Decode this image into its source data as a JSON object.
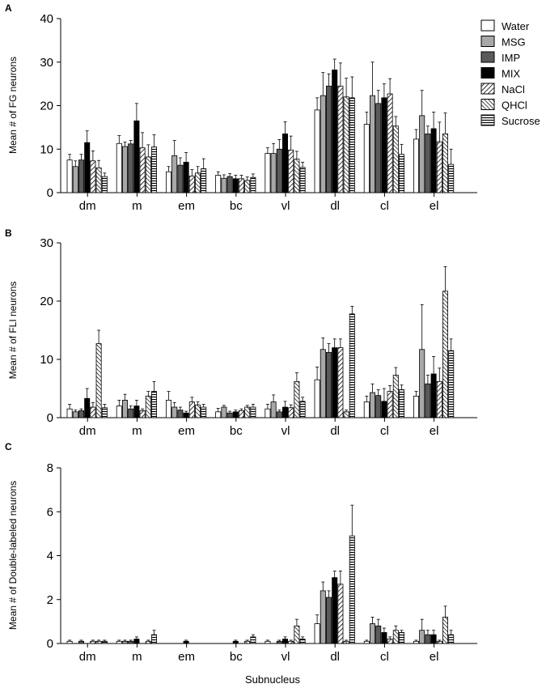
{
  "chart_data": [
    {
      "type": "bar",
      "panel": "A",
      "ylabel": "Mean # of FG neurons",
      "xlabel": "",
      "ylim": [
        0,
        40
      ],
      "yticks": [
        0,
        10,
        20,
        30,
        40
      ],
      "categories": [
        "dm",
        "m",
        "em",
        "bc",
        "vl",
        "dl",
        "cl",
        "el"
      ],
      "legend": "top-right",
      "series": [
        {
          "name": "Water",
          "values": [
            7.5,
            11.3,
            4.8,
            4.0,
            9.0,
            19.0,
            15.7,
            12.3
          ],
          "errors": [
            1.3,
            1.8,
            1.2,
            0.8,
            1.3,
            2.8,
            2.8,
            2.2
          ]
        },
        {
          "name": "MSG",
          "values": [
            6.0,
            10.6,
            8.5,
            3.3,
            9.0,
            22.3,
            22.3,
            17.7
          ],
          "errors": [
            1.3,
            1.0,
            3.5,
            0.8,
            2.3,
            5.3,
            7.7,
            5.8
          ]
        },
        {
          "name": "IMP",
          "values": [
            7.5,
            11.2,
            6.3,
            3.7,
            10.0,
            24.5,
            20.5,
            13.5
          ],
          "errors": [
            1.3,
            0.8,
            1.7,
            0.7,
            2.2,
            2.8,
            3.0,
            1.8
          ]
        },
        {
          "name": "MIX",
          "values": [
            11.5,
            16.5,
            7.0,
            3.2,
            13.5,
            28.2,
            21.8,
            14.7
          ],
          "errors": [
            2.7,
            4.0,
            2.2,
            0.8,
            2.8,
            2.5,
            3.2,
            3.8
          ]
        },
        {
          "name": "NaCl",
          "values": [
            7.3,
            10.3,
            3.8,
            3.2,
            9.8,
            24.5,
            22.7,
            11.7
          ],
          "errors": [
            2.3,
            3.5,
            1.5,
            0.8,
            3.2,
            5.3,
            3.5,
            4.5
          ]
        },
        {
          "name": "QHCl",
          "values": [
            5.7,
            8.2,
            4.5,
            2.8,
            7.7,
            22.0,
            15.3,
            13.5
          ],
          "errors": [
            1.7,
            2.8,
            1.5,
            0.8,
            1.8,
            4.3,
            2.2,
            4.8
          ]
        },
        {
          "name": "Sucrose",
          "values": [
            3.7,
            10.5,
            5.5,
            3.5,
            5.8,
            21.8,
            8.8,
            6.5
          ],
          "errors": [
            0.8,
            2.8,
            2.3,
            0.8,
            1.2,
            4.8,
            2.3,
            3.5
          ]
        }
      ]
    },
    {
      "type": "bar",
      "panel": "B",
      "ylabel": "Mean # of FLI neurons",
      "xlabel": "",
      "ylim": [
        0,
        30
      ],
      "yticks": [
        0,
        10,
        20,
        30
      ],
      "categories": [
        "dm",
        "m",
        "em",
        "bc",
        "vl",
        "dl",
        "cl",
        "el"
      ],
      "series": [
        {
          "name": "Water",
          "values": [
            1.5,
            2.0,
            3.0,
            1.0,
            1.5,
            6.5,
            2.7,
            3.7
          ],
          "errors": [
            0.8,
            1.0,
            1.5,
            0.6,
            0.8,
            2.2,
            1.0,
            0.8
          ]
        },
        {
          "name": "MSG",
          "values": [
            1.0,
            3.0,
            1.8,
            1.8,
            2.7,
            11.7,
            4.3,
            11.7
          ],
          "errors": [
            0.3,
            1.0,
            0.8,
            0.3,
            1.2,
            2.0,
            1.5,
            7.7
          ]
        },
        {
          "name": "IMP",
          "values": [
            1.2,
            1.5,
            1.3,
            0.8,
            1.0,
            11.2,
            3.8,
            5.8
          ],
          "errors": [
            0.3,
            0.5,
            0.5,
            0.3,
            0.3,
            1.5,
            1.0,
            1.5
          ]
        },
        {
          "name": "MIX",
          "values": [
            3.3,
            2.0,
            0.8,
            1.0,
            1.8,
            12.0,
            2.8,
            7.5
          ],
          "errors": [
            1.7,
            1.0,
            0.3,
            0.3,
            1.0,
            1.5,
            2.2,
            3.0
          ]
        },
        {
          "name": "NaCl",
          "values": [
            1.8,
            1.2,
            2.7,
            1.2,
            1.7,
            12.0,
            4.5,
            6.2
          ],
          "errors": [
            0.8,
            0.3,
            0.8,
            0.3,
            0.5,
            1.5,
            1.0,
            2.3
          ]
        },
        {
          "name": "QHCl",
          "values": [
            12.7,
            3.7,
            2.2,
            1.8,
            6.2,
            1.0,
            7.3,
            21.7
          ],
          "errors": [
            2.3,
            0.8,
            0.5,
            0.3,
            1.5,
            0.3,
            1.3,
            4.2
          ]
        },
        {
          "name": "Sucrose",
          "values": [
            1.7,
            4.5,
            1.8,
            1.8,
            2.8,
            17.8,
            4.8,
            11.5
          ],
          "errors": [
            0.6,
            1.7,
            0.5,
            0.5,
            0.7,
            1.3,
            0.8,
            2.0
          ]
        }
      ]
    },
    {
      "type": "bar",
      "panel": "C",
      "ylabel": "Mean # of Double-labeled neurons",
      "xlabel": "Subnucleus",
      "ylim": [
        0,
        8
      ],
      "yticks": [
        0,
        2,
        4,
        6,
        8
      ],
      "categories": [
        "dm",
        "m",
        "em",
        "bc",
        "vl",
        "dl",
        "cl",
        "el"
      ],
      "series": [
        {
          "name": "Water",
          "values": [
            0.1,
            0.1,
            0,
            0,
            0.1,
            0.9,
            0.1,
            0.1
          ],
          "errors": [
            0.05,
            0.05,
            0,
            0,
            0.05,
            0.4,
            0.05,
            0.05
          ]
        },
        {
          "name": "MSG",
          "values": [
            0,
            0.1,
            0,
            0,
            0,
            2.4,
            0.9,
            0.6
          ],
          "errors": [
            0,
            0.05,
            0,
            0,
            0,
            0.4,
            0.3,
            0.5
          ]
        },
        {
          "name": "IMP",
          "values": [
            0.1,
            0.1,
            0,
            0,
            0.1,
            2.1,
            0.8,
            0.4
          ],
          "errors": [
            0.05,
            0.05,
            0,
            0,
            0.05,
            0.3,
            0.3,
            0.2
          ]
        },
        {
          "name": "MIX",
          "values": [
            0,
            0.2,
            0.1,
            0.1,
            0.2,
            3.0,
            0.5,
            0.4
          ],
          "errors": [
            0,
            0.1,
            0.05,
            0.05,
            0.1,
            0.3,
            0.2,
            0.2
          ]
        },
        {
          "name": "NaCl",
          "values": [
            0.1,
            0,
            0,
            0,
            0.1,
            2.7,
            0.2,
            0.1
          ],
          "errors": [
            0.05,
            0,
            0,
            0,
            0.05,
            0.6,
            0.1,
            0.05
          ]
        },
        {
          "name": "QHCl",
          "values": [
            0.1,
            0.1,
            0,
            0.1,
            0.8,
            0.1,
            0.6,
            1.2
          ],
          "errors": [
            0.05,
            0.05,
            0,
            0.05,
            0.3,
            0.05,
            0.2,
            0.5
          ]
        },
        {
          "name": "Sucrose",
          "values": [
            0.1,
            0.4,
            0,
            0.3,
            0.2,
            4.9,
            0.5,
            0.4
          ],
          "errors": [
            0.05,
            0.2,
            0,
            0.1,
            0.1,
            1.4,
            0.1,
            0.2
          ]
        }
      ]
    }
  ],
  "legend_order": [
    "Water",
    "MSG",
    "IMP",
    "MIX",
    "NaCl",
    "QHCl",
    "Sucrose"
  ]
}
